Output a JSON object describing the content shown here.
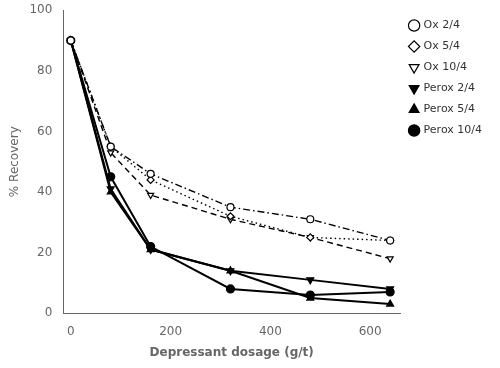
{
  "chart_data": {
    "type": "line",
    "x": [
      0,
      80,
      160,
      320,
      480,
      640
    ],
    "series": [
      {
        "name": "Ox 2/4",
        "color": "#000000",
        "marker": "open-circle",
        "line_style": "dashdot",
        "values": [
          90,
          55,
          46,
          35,
          31,
          24
        ]
      },
      {
        "name": "Ox 5/4",
        "color": "#000000",
        "marker": "open-diamond",
        "line_style": "dotted",
        "values": [
          90,
          55,
          44,
          32,
          25,
          24
        ]
      },
      {
        "name": "Ox 10/4",
        "color": "#000000",
        "marker": "open-triangle-down",
        "line_style": "dashed",
        "values": [
          90,
          53,
          39,
          31,
          25,
          18
        ]
      },
      {
        "name": "Perox 2/4",
        "color": "#000000",
        "marker": "filled-triangle-down",
        "line_style": "solid",
        "values": [
          90,
          41,
          21,
          14,
          11,
          8
        ]
      },
      {
        "name": "Perox 5/4",
        "color": "#000000",
        "marker": "filled-triangle",
        "line_style": "solid",
        "values": [
          90,
          40,
          21,
          14,
          5,
          3
        ]
      },
      {
        "name": "Perox 10/4",
        "color": "#000000",
        "marker": "filled-circle",
        "line_style": "solid",
        "values": [
          90,
          45,
          22,
          8,
          6,
          7
        ]
      }
    ],
    "xlabel": "Depressant dosage (g/t)",
    "ylabel": "% Recovery",
    "xlim": [
      -15,
      660
    ],
    "ylim": [
      0,
      100
    ],
    "xticks": [
      0,
      200,
      400,
      600
    ],
    "yticks": [
      0,
      20,
      40,
      60,
      80,
      100
    ],
    "grid": false,
    "legend": "upper right"
  }
}
